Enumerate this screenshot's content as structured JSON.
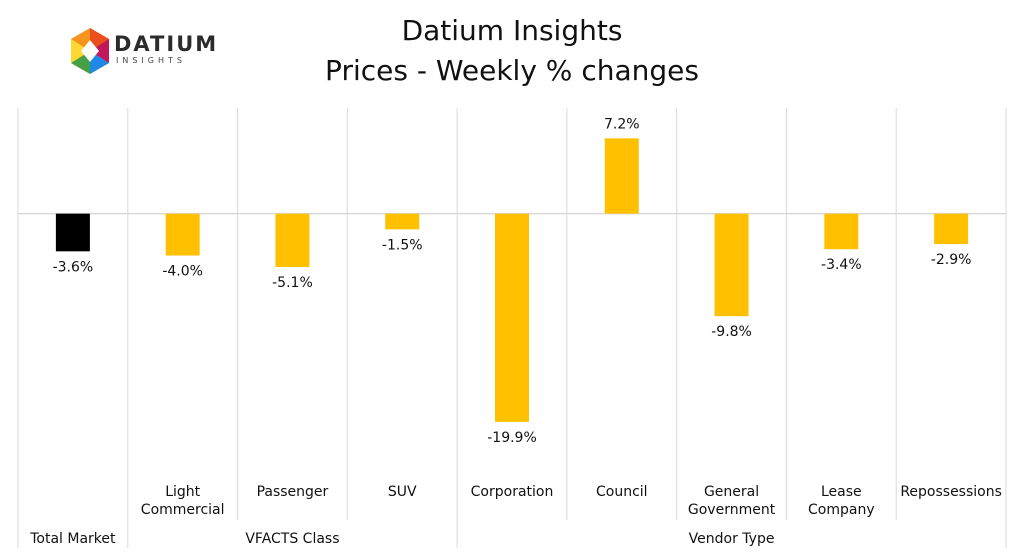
{
  "header": {
    "logo_word": "DATIUM",
    "logo_sub": "INSIGHTS",
    "title": "Datium Insights",
    "subtitle": "Prices - Weekly % changes"
  },
  "colors": {
    "highlight": "#000000",
    "bar": "#FFC000",
    "grid": "#d9d9d9"
  },
  "chart_data": {
    "type": "bar",
    "title": "Prices - Weekly % changes",
    "categories": [
      "Total Market",
      "Light Commercial",
      "Passenger",
      "SUV",
      "Corporation",
      "Council",
      "General Government",
      "Lease Company",
      "Repossessions"
    ],
    "category_lines": [
      [
        "Total Market"
      ],
      [
        "Light",
        "Commercial"
      ],
      [
        "Passenger"
      ],
      [
        "SUV"
      ],
      [
        "Corporation"
      ],
      [
        "Council"
      ],
      [
        "General",
        "Government"
      ],
      [
        "Lease",
        "Company"
      ],
      [
        "Repossessions"
      ]
    ],
    "values": [
      -3.6,
      -4.0,
      -5.1,
      -1.5,
      -19.9,
      7.2,
      -9.8,
      -3.4,
      -2.9
    ],
    "data_labels": [
      "-3.6%",
      "-4.0%",
      "-5.1%",
      "-1.5%",
      "-19.9%",
      "7.2%",
      "-9.8%",
      "-3.4%",
      "-2.9%"
    ],
    "bar_colors": [
      "#000000",
      "#FFC000",
      "#FFC000",
      "#FFC000",
      "#FFC000",
      "#FFC000",
      "#FFC000",
      "#FFC000",
      "#FFC000"
    ],
    "groups": [
      {
        "label": "",
        "span": [
          0,
          0
        ]
      },
      {
        "label": "VFACTS Class",
        "span": [
          1,
          3
        ]
      },
      {
        "label": "Vendor Type",
        "span": [
          4,
          8
        ]
      }
    ],
    "ylim": [
      -24.5,
      10.1
    ],
    "grid": false,
    "legend": "none"
  }
}
